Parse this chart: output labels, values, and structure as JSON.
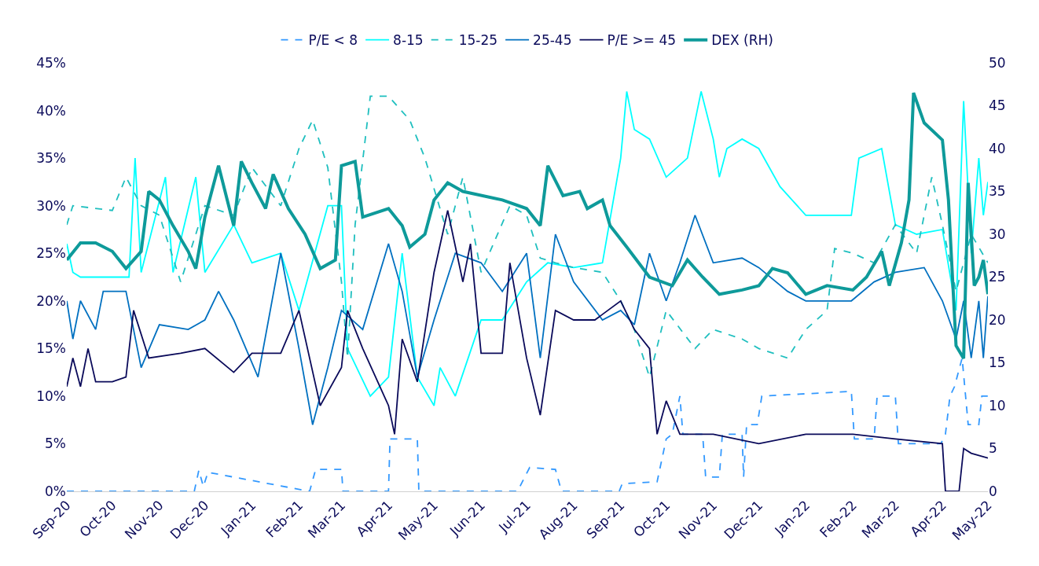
{
  "chart_data": {
    "type": "line",
    "legend": "top",
    "marker": "none",
    "xlim": [
      "2020-09-01",
      "2022-05-01"
    ],
    "xticks": [
      {
        "value": "2020-09-01",
        "label": "Sep-20"
      },
      {
        "value": "2020-10-01",
        "label": "Oct-20"
      },
      {
        "value": "2020-11-01",
        "label": "Nov-20"
      },
      {
        "value": "2020-12-01",
        "label": "Dec-20"
      },
      {
        "value": "2021-01-01",
        "label": "Jan-21"
      },
      {
        "value": "2021-02-01",
        "label": "Feb-21"
      },
      {
        "value": "2021-03-01",
        "label": "Mar-21"
      },
      {
        "value": "2021-04-01",
        "label": "Apr-21"
      },
      {
        "value": "2021-05-01",
        "label": "May-21"
      },
      {
        "value": "2021-06-01",
        "label": "Jun-21"
      },
      {
        "value": "2021-07-01",
        "label": "Jul-21"
      },
      {
        "value": "2021-08-01",
        "label": "Aug-21"
      },
      {
        "value": "2021-09-01",
        "label": "Sep-21"
      },
      {
        "value": "2021-10-01",
        "label": "Oct-21"
      },
      {
        "value": "2021-11-01",
        "label": "Nov-21"
      },
      {
        "value": "2021-12-01",
        "label": "Dec-21"
      },
      {
        "value": "2022-01-01",
        "label": "Jan-22"
      },
      {
        "value": "2022-02-01",
        "label": "Feb-22"
      },
      {
        "value": "2022-03-01",
        "label": "Mar-22"
      },
      {
        "value": "2022-04-01",
        "label": "Apr-22"
      },
      {
        "value": "2022-05-01",
        "label": "May-22"
      }
    ],
    "ylim": [
      0,
      45
    ],
    "yticks": [
      {
        "value": 0,
        "label": "0%"
      },
      {
        "value": 5,
        "label": "5%"
      },
      {
        "value": 10,
        "label": "10%"
      },
      {
        "value": 15,
        "label": "15%"
      },
      {
        "value": 20,
        "label": "20%"
      },
      {
        "value": 25,
        "label": "25%"
      },
      {
        "value": 30,
        "label": "30%"
      },
      {
        "value": 35,
        "label": "35%"
      },
      {
        "value": 40,
        "label": "40%"
      },
      {
        "value": 45,
        "label": "45%"
      }
    ],
    "y2lim": [
      0,
      50
    ],
    "y2ticks": [
      0,
      5,
      10,
      15,
      20,
      25,
      30,
      35,
      40,
      45,
      50
    ],
    "series": [
      {
        "name": "P/E < 8",
        "color": "#3399ff",
        "line_style": "dashed",
        "x": [
          "2020-09-01",
          "2020-11-24",
          "2020-11-27",
          "2020-11-30",
          "2020-12-03",
          "2021-02-08",
          "2021-02-12",
          "2021-03-01",
          "2021-03-02",
          "2021-04-01",
          "2021-04-02",
          "2021-04-20",
          "2021-04-21",
          "2021-06-25",
          "2021-07-03",
          "2021-07-20",
          "2021-07-24",
          "2021-08-31",
          "2021-09-02",
          "2021-09-25",
          "2021-10-01",
          "2021-10-05",
          "2021-10-10",
          "2021-10-12",
          "2021-10-25",
          "2021-10-27",
          "2021-11-05",
          "2021-11-07",
          "2021-11-20",
          "2021-11-21",
          "2021-11-23",
          "2021-11-30",
          "2021-12-03",
          "2022-01-31",
          "2022-02-02",
          "2022-02-15",
          "2022-02-17",
          "2022-03-01",
          "2022-03-03",
          "2022-03-31",
          "2022-04-03",
          "2022-04-06",
          "2022-04-09",
          "2022-04-14",
          "2022-04-18",
          "2022-04-25",
          "2022-04-27",
          "2022-05-01"
        ],
        "values": [
          0,
          0,
          2.2,
          0.5,
          2,
          0,
          2.3,
          2.3,
          0,
          0,
          5.5,
          5.5,
          0,
          0,
          2.5,
          2.3,
          0,
          0,
          0.8,
          1,
          5.5,
          6,
          10,
          6,
          6,
          1.5,
          1.5,
          6,
          6,
          1.5,
          7,
          7,
          10,
          10.5,
          5.5,
          5.5,
          10,
          10,
          5,
          5,
          6,
          10,
          11,
          14,
          7,
          7,
          10,
          10
        ]
      },
      {
        "name": "8-15",
        "color": "#00ffff",
        "line_style": "solid",
        "x": [
          "2020-09-01",
          "2020-09-05",
          "2020-09-10",
          "2020-10-12",
          "2020-10-16",
          "2020-10-20",
          "2020-11-05",
          "2020-11-10",
          "2020-11-25",
          "2020-12-01",
          "2020-12-20",
          "2021-01-01",
          "2021-01-20",
          "2021-02-01",
          "2021-02-20",
          "2021-03-01",
          "2021-03-05",
          "2021-03-20",
          "2021-04-01",
          "2021-04-10",
          "2021-04-20",
          "2021-05-01",
          "2021-05-05",
          "2021-05-15",
          "2021-06-01",
          "2021-06-15",
          "2021-07-01",
          "2021-07-15",
          "2021-08-01",
          "2021-08-20",
          "2021-09-01",
          "2021-09-05",
          "2021-09-10",
          "2021-09-20",
          "2021-10-01",
          "2021-10-15",
          "2021-10-24",
          "2021-11-01",
          "2021-11-05",
          "2021-11-10",
          "2021-11-20",
          "2021-12-01",
          "2021-12-15",
          "2022-01-01",
          "2022-01-31",
          "2022-02-05",
          "2022-02-20",
          "2022-03-01",
          "2022-03-15",
          "2022-04-01",
          "2022-04-10",
          "2022-04-15",
          "2022-04-20",
          "2022-04-25",
          "2022-04-28",
          "2022-05-01"
        ],
        "values": [
          26,
          23,
          22.5,
          22.5,
          35,
          23,
          33,
          23,
          33,
          23,
          28,
          24,
          25,
          19,
          30,
          30,
          15,
          10,
          12,
          25,
          12,
          9,
          13,
          10,
          18,
          18,
          22,
          24,
          23.5,
          24,
          35,
          42,
          38,
          37,
          33,
          35,
          42,
          37,
          33,
          36,
          37,
          36,
          32,
          29,
          29,
          35,
          36,
          28,
          27,
          27.5,
          19,
          41,
          25,
          35,
          29,
          32.5
        ]
      },
      {
        "name": "15-25",
        "color": "#1fbfbf",
        "line_style": "dashed",
        "x": [
          "2020-09-01",
          "2020-09-05",
          "2020-10-01",
          "2020-10-10",
          "2020-10-20",
          "2020-11-01",
          "2020-11-15",
          "2020-12-01",
          "2020-12-20",
          "2021-01-01",
          "2021-01-20",
          "2021-02-01",
          "2021-02-10",
          "2021-02-20",
          "2021-03-01",
          "2021-03-05",
          "2021-03-10",
          "2021-03-20",
          "2021-04-01",
          "2021-04-15",
          "2021-04-25",
          "2021-05-10",
          "2021-05-20",
          "2021-06-01",
          "2021-06-20",
          "2021-07-01",
          "2021-07-10",
          "2021-07-20",
          "2021-08-01",
          "2021-08-20",
          "2021-09-01",
          "2021-09-10",
          "2021-09-20",
          "2021-10-01",
          "2021-10-20",
          "2021-11-01",
          "2021-11-20",
          "2021-12-01",
          "2021-12-20",
          "2022-01-01",
          "2022-01-15",
          "2022-01-20",
          "2022-02-01",
          "2022-02-15",
          "2022-03-01",
          "2022-03-15",
          "2022-03-25",
          "2022-04-01",
          "2022-04-10",
          "2022-04-20",
          "2022-05-01"
        ],
        "values": [
          28,
          30,
          29.5,
          33,
          30,
          29,
          22,
          30,
          29,
          34,
          30,
          36,
          39,
          34,
          22,
          14,
          28,
          41.5,
          41.5,
          39,
          35,
          27,
          33,
          23,
          30,
          29,
          24.5,
          24,
          23.5,
          23,
          20,
          17,
          12,
          19,
          15,
          17,
          16,
          15,
          14,
          17,
          19,
          25.5,
          25,
          24,
          28,
          25,
          33,
          28,
          21,
          27,
          24
        ]
      },
      {
        "name": "25-45",
        "color": "#0070c0",
        "line_style": "solid",
        "x": [
          "2020-09-01",
          "2020-09-05",
          "2020-09-10",
          "2020-09-20",
          "2020-09-25",
          "2020-10-10",
          "2020-10-20",
          "2020-11-01",
          "2020-11-20",
          "2020-12-01",
          "2020-12-10",
          "2020-12-20",
          "2021-01-05",
          "2021-01-20",
          "2021-02-01",
          "2021-02-10",
          "2021-02-20",
          "2021-03-01",
          "2021-03-15",
          "2021-04-01",
          "2021-04-10",
          "2021-04-20",
          "2021-05-01",
          "2021-05-15",
          "2021-06-01",
          "2021-06-15",
          "2021-07-01",
          "2021-07-10",
          "2021-07-20",
          "2021-08-01",
          "2021-08-20",
          "2021-09-01",
          "2021-09-10",
          "2021-09-20",
          "2021-10-01",
          "2021-10-10",
          "2021-10-20",
          "2021-11-01",
          "2021-11-20",
          "2021-12-01",
          "2021-12-20",
          "2022-01-01",
          "2022-01-31",
          "2022-02-15",
          "2022-03-01",
          "2022-03-20",
          "2022-04-01",
          "2022-04-10",
          "2022-04-15",
          "2022-04-20",
          "2022-04-25",
          "2022-04-28",
          "2022-05-01"
        ],
        "values": [
          20,
          16,
          20,
          17,
          21,
          21,
          13,
          17.5,
          17,
          18,
          21,
          18,
          12,
          25,
          15,
          7,
          13,
          19,
          17,
          26,
          21,
          12,
          18,
          25,
          24,
          21,
          25,
          14,
          27,
          22,
          18,
          19,
          17.5,
          25,
          20,
          24,
          29,
          24,
          24.5,
          23.5,
          21,
          20,
          20,
          22,
          23,
          23.5,
          20,
          16,
          20,
          14,
          20,
          14,
          20.5
        ]
      },
      {
        "name": "P/E >= 45",
        "color": "#0a0a5a",
        "line_style": "solid",
        "x": [
          "2020-09-01",
          "2020-09-05",
          "2020-09-10",
          "2020-09-15",
          "2020-09-20",
          "2020-10-01",
          "2020-10-10",
          "2020-10-15",
          "2020-10-25",
          "2020-11-15",
          "2020-12-01",
          "2020-12-20",
          "2021-01-01",
          "2021-01-20",
          "2021-02-01",
          "2021-02-15",
          "2021-03-01",
          "2021-03-05",
          "2021-03-15",
          "2021-04-01",
          "2021-04-05",
          "2021-04-10",
          "2021-04-20",
          "2021-05-01",
          "2021-05-10",
          "2021-05-20",
          "2021-05-25",
          "2021-06-01",
          "2021-06-15",
          "2021-06-20",
          "2021-07-01",
          "2021-07-10",
          "2021-07-20",
          "2021-08-01",
          "2021-08-15",
          "2021-09-01",
          "2021-09-10",
          "2021-09-20",
          "2021-09-25",
          "2021-10-01",
          "2021-10-10",
          "2021-11-01",
          "2021-12-01",
          "2022-01-01",
          "2022-02-01",
          "2022-03-01",
          "2022-04-01",
          "2022-04-03",
          "2022-04-12",
          "2022-04-15",
          "2022-04-20",
          "2022-05-01"
        ],
        "values": [
          11,
          14,
          11,
          15,
          11.5,
          11.5,
          12,
          19,
          14,
          14.5,
          15,
          12.5,
          14.5,
          14.5,
          19,
          9,
          13,
          19,
          15,
          9,
          6,
          16,
          11.5,
          23,
          29.5,
          22,
          26,
          14.5,
          14.5,
          24,
          14,
          8,
          19,
          18,
          18,
          20,
          17,
          15,
          6,
          9.5,
          6,
          6,
          5,
          6,
          6,
          5.5,
          5,
          0,
          0,
          4.5,
          4,
          3.5
        ]
      },
      {
        "name": "DEX (RH)",
        "color": "#0e9a9a",
        "line_style": "solid",
        "axis": "y2",
        "x": [
          "2020-09-01",
          "2020-09-10",
          "2020-09-20",
          "2020-10-01",
          "2020-10-10",
          "2020-10-20",
          "2020-10-25",
          "2020-11-01",
          "2020-11-10",
          "2020-11-20",
          "2020-11-25",
          "2020-12-01",
          "2020-12-10",
          "2020-12-20",
          "2020-12-25",
          "2021-01-01",
          "2021-01-10",
          "2021-01-15",
          "2021-01-25",
          "2021-02-05",
          "2021-02-15",
          "2021-02-25",
          "2021-03-01",
          "2021-03-10",
          "2021-03-15",
          "2021-04-01",
          "2021-04-10",
          "2021-04-15",
          "2021-04-25",
          "2021-05-01",
          "2021-05-10",
          "2021-05-20",
          "2021-06-15",
          "2021-07-01",
          "2021-07-10",
          "2021-07-15",
          "2021-07-25",
          "2021-08-05",
          "2021-08-10",
          "2021-08-20",
          "2021-08-25",
          "2021-09-05",
          "2021-09-20",
          "2021-10-05",
          "2021-10-15",
          "2021-10-25",
          "2021-11-05",
          "2021-11-20",
          "2021-12-01",
          "2021-12-10",
          "2021-12-20",
          "2022-01-01",
          "2022-01-15",
          "2022-02-01",
          "2022-02-10",
          "2022-02-20",
          "2022-02-25",
          "2022-03-05",
          "2022-03-10",
          "2022-03-13",
          "2022-03-20",
          "2022-04-01",
          "2022-04-05",
          "2022-04-10",
          "2022-04-15",
          "2022-04-18",
          "2022-04-22",
          "2022-04-25",
          "2022-04-28",
          "2022-05-01"
        ],
        "values": [
          27,
          29,
          29,
          28,
          26,
          28,
          35,
          34,
          31,
          28,
          26,
          32,
          38,
          31,
          38.5,
          36,
          33,
          37,
          33,
          30,
          26,
          27,
          38,
          38.5,
          32,
          33,
          31,
          28.5,
          30,
          34,
          36,
          35,
          34,
          33,
          31,
          38,
          34.5,
          35,
          33,
          34,
          31,
          28.5,
          25,
          24,
          27,
          25,
          23,
          23.5,
          24,
          26,
          25.5,
          23,
          24,
          23.5,
          25,
          28,
          24,
          29,
          34,
          46.5,
          43,
          41,
          34,
          17,
          15.5,
          36,
          24,
          25,
          27,
          23
        ]
      }
    ]
  }
}
